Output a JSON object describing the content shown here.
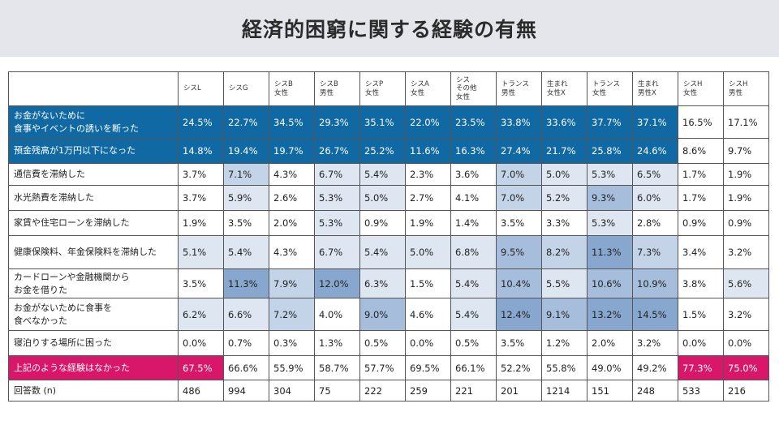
{
  "title": "経済的困窮に関する経験の有無",
  "colors": {
    "title_band": "#e4e6ec",
    "highlight_blue": "#1169a3",
    "highlight_pink": "#d8176a",
    "heat_scale": [
      "#ffffff",
      "#dde6f1",
      "#c4d4e8",
      "#a6bedb",
      "#88a7ce"
    ]
  },
  "chart_data": {
    "type": "table",
    "title": "経済的困窮に関する経験の有無",
    "columns": [
      "シスL",
      "シスG",
      "シスB\n女性",
      "シスB\n男性",
      "シスP\n女性",
      "シスA\n女性",
      "シス\nその他\n女性",
      "トランス\n男性",
      "生まれ\n女性X",
      "トランス\n女性",
      "生まれ\n男性X",
      "シスH\n女性",
      "シスH\n男性"
    ],
    "rows": [
      {
        "label": "お金がないために\n食事やイベントの誘いを断った",
        "highlight": "blue",
        "blue_cols": 11,
        "values": [
          "24.5%",
          "22.7%",
          "34.5%",
          "29.3%",
          "35.1%",
          "22.0%",
          "23.5%",
          "33.8%",
          "33.6%",
          "37.7%",
          "37.1%",
          "16.5%",
          "17.1%"
        ]
      },
      {
        "label": "預金残高が1万円以下になった",
        "highlight": "blue",
        "blue_cols": 11,
        "values": [
          "14.8%",
          "19.4%",
          "19.7%",
          "26.7%",
          "25.2%",
          "11.6%",
          "16.3%",
          "27.4%",
          "21.7%",
          "25.8%",
          "24.6%",
          "8.6%",
          "9.7%"
        ]
      },
      {
        "label": "通信費を滞納した",
        "values": [
          "3.7%",
          "7.1%",
          "4.3%",
          "6.7%",
          "5.4%",
          "2.3%",
          "3.6%",
          "7.0%",
          "5.0%",
          "5.3%",
          "6.5%",
          "1.7%",
          "1.9%"
        ]
      },
      {
        "label": "水光熱費を滞納した",
        "values": [
          "3.7%",
          "5.9%",
          "2.6%",
          "5.3%",
          "5.0%",
          "2.7%",
          "4.1%",
          "7.0%",
          "5.2%",
          "9.3%",
          "6.0%",
          "1.7%",
          "1.9%"
        ]
      },
      {
        "label": "家賃や住宅ローンを滞納した",
        "values": [
          "1.9%",
          "3.5%",
          "2.0%",
          "5.3%",
          "0.9%",
          "1.9%",
          "1.4%",
          "3.5%",
          "3.3%",
          "5.3%",
          "2.8%",
          "0.9%",
          "0.9%"
        ]
      },
      {
        "label": "健康保険料、年金保険料を滞納した",
        "values": [
          "5.1%",
          "5.4%",
          "4.3%",
          "6.7%",
          "5.4%",
          "5.0%",
          "6.8%",
          "9.5%",
          "8.2%",
          "11.3%",
          "7.3%",
          "3.4%",
          "3.2%"
        ]
      },
      {
        "label": "カードローンや金融機関から\nお金を借りた",
        "values": [
          "3.5%",
          "11.3%",
          "7.9%",
          "12.0%",
          "6.3%",
          "1.5%",
          "5.4%",
          "10.4%",
          "5.5%",
          "10.6%",
          "10.9%",
          "3.8%",
          "5.6%"
        ]
      },
      {
        "label": "お金がないために食事を\n食べなかった",
        "values": [
          "6.2%",
          "6.6%",
          "7.2%",
          "4.0%",
          "9.0%",
          "4.6%",
          "5.4%",
          "12.4%",
          "9.1%",
          "13.2%",
          "14.5%",
          "1.5%",
          "3.2%"
        ]
      },
      {
        "label": "寝泊りする場所に困った",
        "values": [
          "0.0%",
          "0.7%",
          "0.3%",
          "1.3%",
          "0.5%",
          "0.0%",
          "0.5%",
          "3.5%",
          "1.2%",
          "2.0%",
          "3.2%",
          "0.0%",
          "0.0%"
        ]
      },
      {
        "label": "上記のような経験はなかった",
        "highlight": "pink",
        "values": [
          "67.5%",
          "66.6%",
          "55.9%",
          "58.7%",
          "57.7%",
          "69.5%",
          "66.1%",
          "52.2%",
          "55.8%",
          "49.0%",
          "49.2%",
          "77.3%",
          "75.0%"
        ]
      },
      {
        "label": "回答数 (n)",
        "plain": true,
        "values": [
          "486",
          "994",
          "304",
          "75",
          "222",
          "259",
          "221",
          "201",
          "1214",
          "151",
          "248",
          "533",
          "216"
        ]
      }
    ]
  }
}
